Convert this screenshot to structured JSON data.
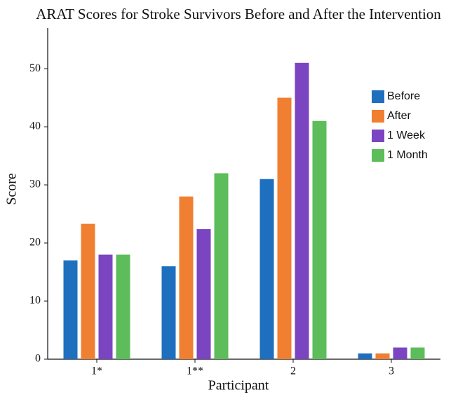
{
  "chart_data": {
    "type": "bar",
    "title": "ARAT Scores for Stroke Survivors Before and After the Intervention",
    "x_label": "Participant",
    "y_label": "Score",
    "categories": [
      "1*",
      "1**",
      "2",
      "3"
    ],
    "series": [
      {
        "name": "Before",
        "color": "#1f6fbf",
        "values": [
          17,
          16,
          31,
          1
        ]
      },
      {
        "name": "After",
        "color": "#f07f32",
        "values": [
          23.3,
          28,
          45,
          1
        ]
      },
      {
        "name": "1 Week",
        "color": "#7b44c1",
        "values": [
          18,
          22.4,
          51,
          2
        ]
      },
      {
        "name": "1 Month",
        "color": "#5cbd5a",
        "values": [
          18,
          32,
          41,
          2
        ]
      }
    ],
    "ylim": [
      0,
      57
    ],
    "yticks": [
      0,
      10,
      20,
      30,
      40,
      50
    ],
    "grid": false,
    "legend_position": "upper right"
  }
}
